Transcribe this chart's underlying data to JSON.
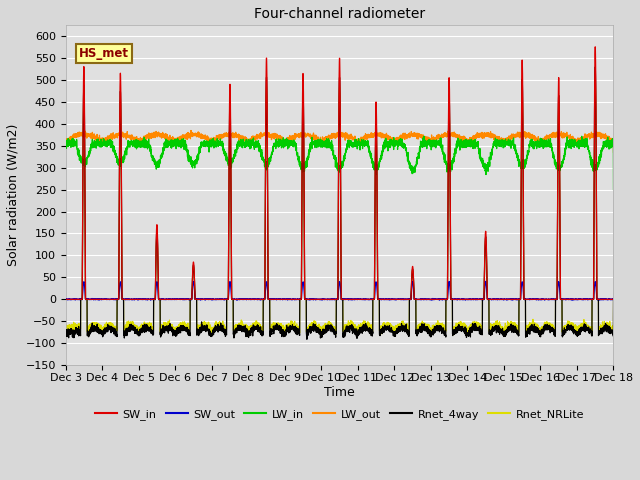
{
  "title": "Four-channel radiometer",
  "xlabel": "Time",
  "ylabel": "Solar radiation (W/m2)",
  "ylim": [
    -150,
    625
  ],
  "yticks": [
    -150,
    -100,
    -50,
    0,
    50,
    100,
    150,
    200,
    250,
    300,
    350,
    400,
    450,
    500,
    550,
    600
  ],
  "xtick_labels": [
    "Dec 3",
    "Dec 4",
    "Dec 5",
    "Dec 6",
    "Dec 7",
    "Dec 8",
    "Dec 9",
    "Dec 10",
    "Dec 11",
    "Dec 12",
    "Dec 13",
    "Dec 14",
    "Dec 15",
    "Dec 16",
    "Dec 17",
    "Dec 18"
  ],
  "colors": {
    "SW_in": "#dd0000",
    "SW_out": "#0000cc",
    "LW_in": "#00cc00",
    "LW_out": "#ff8800",
    "Rnet_4way": "#000000",
    "Rnet_NRLite": "#dddd00"
  },
  "legend_label": "HS_met",
  "legend_box_color": "#ffff99",
  "legend_box_edge": "#8b6914",
  "background_color": "#e0e0e0",
  "grid_color": "#ffffff",
  "n_days": 15,
  "points_per_day": 288,
  "peak_vals_SW": [
    530,
    515,
    170,
    85,
    490,
    550,
    515,
    550,
    450,
    75,
    505,
    155,
    545,
    505,
    575
  ],
  "figsize": [
    6.4,
    4.8
  ],
  "dpi": 100
}
